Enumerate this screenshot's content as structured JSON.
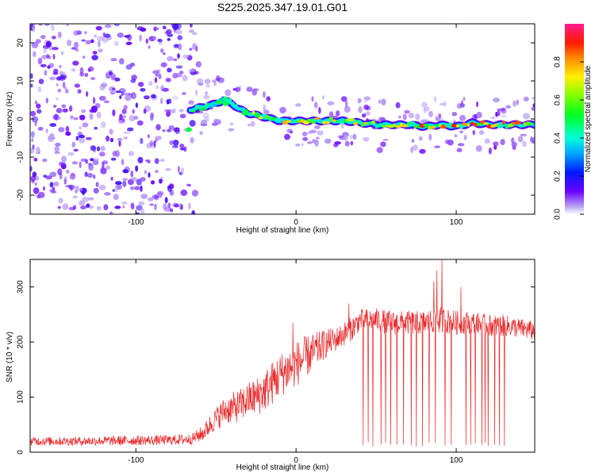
{
  "title": "S225.2025.347.19.01.G01",
  "colors": {
    "snr_line": "#e8292b",
    "frame": "#000000",
    "scatter_base": "#6a1fe0"
  },
  "chart_data": [
    {
      "type": "heatmap",
      "xlabel": "Height of straight line (km)",
      "ylabel": "Frequency (Hz)",
      "xlim": [
        -166,
        149
      ],
      "ylim": [
        -25,
        25
      ],
      "xticks": [
        -100,
        0,
        100
      ],
      "yticks": [
        20,
        10,
        0,
        -10,
        -20
      ],
      "xtick_labels": [
        "-100",
        "0",
        "100"
      ],
      "ytick_labels": [
        "20",
        "10",
        "0",
        "-10",
        "-20"
      ],
      "ridge": {
        "x": [
          -65,
          -60,
          -55,
          -50,
          -45,
          -40,
          -35,
          -30,
          -25,
          -20,
          -15,
          -10,
          -5,
          0,
          10,
          20,
          30,
          40,
          50,
          60,
          70,
          80,
          90,
          100,
          110,
          120,
          130,
          140,
          149
        ],
        "y": [
          2.5,
          3,
          3.5,
          4,
          5,
          4,
          2.5,
          1.5,
          1,
          0.5,
          0,
          -0.5,
          -0.5,
          -0.5,
          -0.5,
          -0.5,
          -0.5,
          -1,
          -1.5,
          -1.5,
          -1.5,
          -2,
          -1.5,
          -2,
          -1,
          -1.5,
          -1.5,
          -1.5,
          -1.5
        ]
      },
      "colorbar": {
        "label": "Normalized spectral amplitude",
        "range": [
          0.0,
          1.0
        ],
        "ticks": [
          0.0,
          0.2,
          0.4,
          0.6,
          0.8
        ],
        "tick_labels": [
          "0.0",
          "0.2",
          "0.4",
          "0.6",
          "0.8"
        ]
      }
    },
    {
      "type": "line",
      "xlabel": "Height of straight line (km)",
      "ylabel": "SNR (10 * v/v)",
      "xlim": [
        -166,
        149
      ],
      "ylim": [
        0,
        350
      ],
      "xticks": [
        -100,
        0,
        100
      ],
      "yticks": [
        0,
        100,
        200,
        300
      ],
      "xtick_labels": [
        "-100",
        "0",
        "100"
      ],
      "ytick_labels": [
        "0",
        "100",
        "200",
        "300"
      ],
      "series": [
        {
          "name": "SNR",
          "envelope": {
            "x": [
              -166,
              -140,
              -110,
              -80,
              -65,
              -58,
              -52,
              -45,
              -40,
              -35,
              -30,
              -25,
              -20,
              -15,
              -10,
              -5,
              0,
              5,
              10,
              15,
              20,
              25,
              30,
              35,
              40,
              50,
              60,
              70,
              80,
              90,
              100,
              110,
              120,
              130,
              140,
              149
            ],
            "mean": [
              20,
              20,
              21,
              22,
              24,
              35,
              55,
              75,
              80,
              85,
              95,
              100,
              110,
              125,
              140,
              150,
              160,
              170,
              180,
              190,
              200,
              205,
              215,
              225,
              240,
              240,
              235,
              235,
              235,
              240,
              235,
              235,
              230,
              230,
              225,
              220
            ],
            "spread": [
              8,
              8,
              9,
              9,
              10,
              15,
              20,
              25,
              28,
              30,
              32,
              35,
              38,
              40,
              40,
              42,
              42,
              40,
              35,
              30,
              25,
              22,
              22,
              22,
              20,
              22,
              22,
              22,
              22,
              25,
              22,
              20,
              20,
              20,
              18,
              18
            ]
          },
          "spikes_up": [
            [
              -2,
              235
            ],
            [
              33,
              270
            ],
            [
              86,
              310
            ],
            [
              88,
              330
            ],
            [
              91,
              350
            ],
            [
              103,
              300
            ]
          ],
          "dropouts_x": [
            42,
            45,
            48,
            53,
            56,
            59,
            63,
            67,
            72,
            75,
            79,
            83,
            87,
            93,
            97,
            106,
            109,
            112,
            116,
            118,
            120,
            124,
            127,
            130
          ]
        }
      ]
    }
  ]
}
